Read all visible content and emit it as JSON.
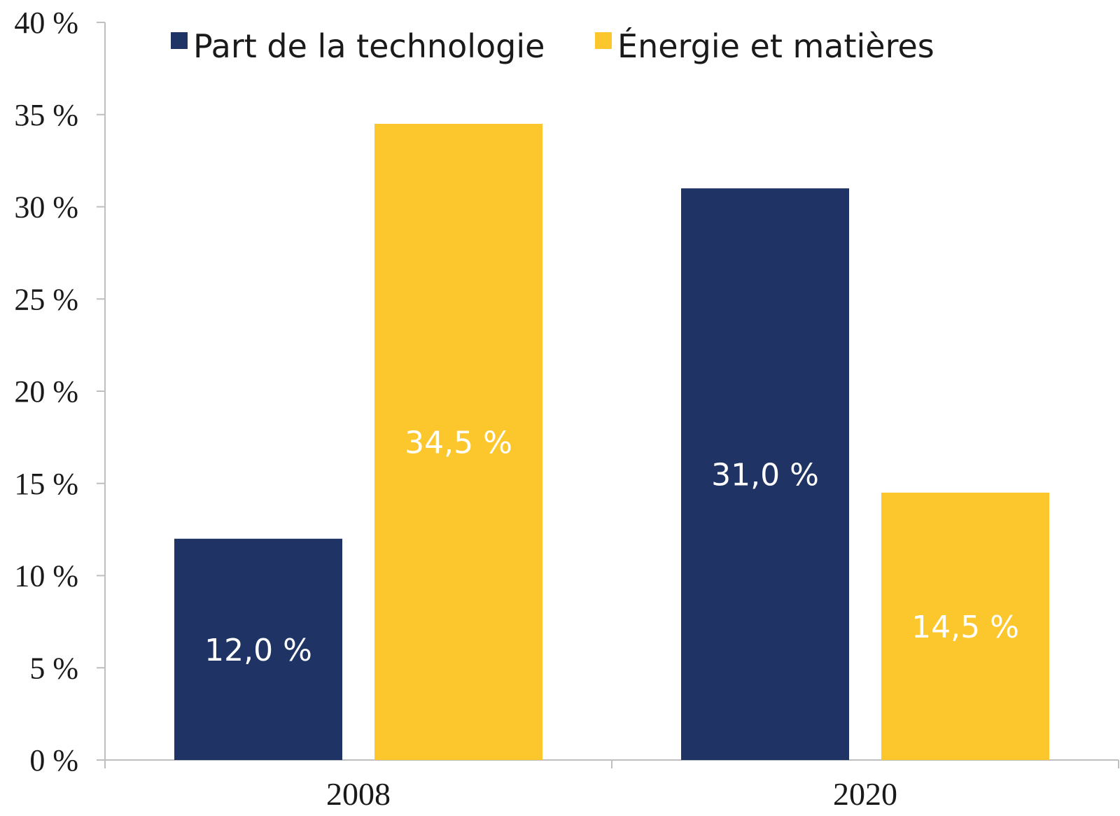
{
  "chart_data": {
    "type": "bar",
    "categories": [
      "2008",
      "2020"
    ],
    "series": [
      {
        "name": "Part de la technologie",
        "values": [
          12.0,
          31.0
        ],
        "labels": [
          "12,0 %",
          "31,0 %"
        ],
        "color": "#1f3464"
      },
      {
        "name": "Énergie et matières",
        "values": [
          34.5,
          14.5
        ],
        "labels": [
          "34,5 %",
          "14,5 %"
        ],
        "color": "#fcc72c"
      }
    ],
    "ylim": [
      0,
      40
    ],
    "yticks": [
      0,
      5,
      10,
      15,
      20,
      25,
      30,
      35,
      40
    ],
    "ytick_labels": [
      "0 %",
      "5 %",
      "10 %",
      "15 %",
      "20 %",
      "25 %",
      "30 %",
      "35 %",
      "40 %"
    ],
    "title": "",
    "xlabel": "",
    "ylabel": "",
    "legend_position": "top",
    "grid": false,
    "axis_color": "#bfbfbf"
  }
}
